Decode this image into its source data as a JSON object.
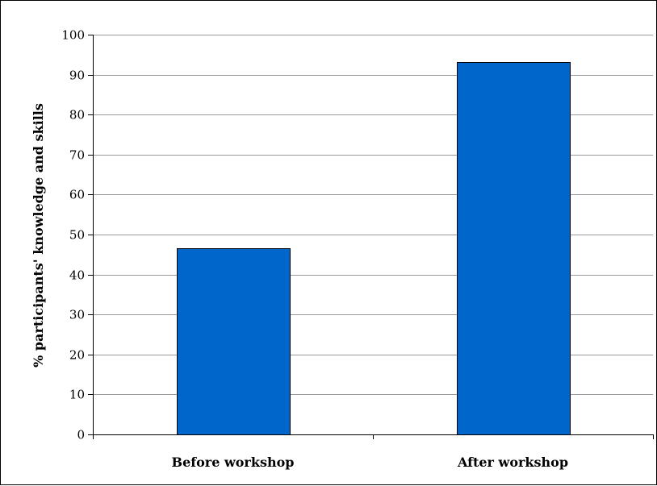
{
  "chart_data": {
    "type": "bar",
    "categories": [
      "Before workshop",
      "After workshop"
    ],
    "values": [
      46.5,
      93.2
    ],
    "title": "",
    "xlabel": "",
    "ylabel": "% participants' knowledge and skills",
    "ylim": [
      0,
      100
    ],
    "yticks": [
      0,
      10,
      20,
      30,
      40,
      50,
      60,
      70,
      80,
      90,
      100
    ],
    "grid": true,
    "legend": "none",
    "bar_color": "#0066CC",
    "bar_edge_color": "#000000",
    "grid_color": "#999999"
  }
}
